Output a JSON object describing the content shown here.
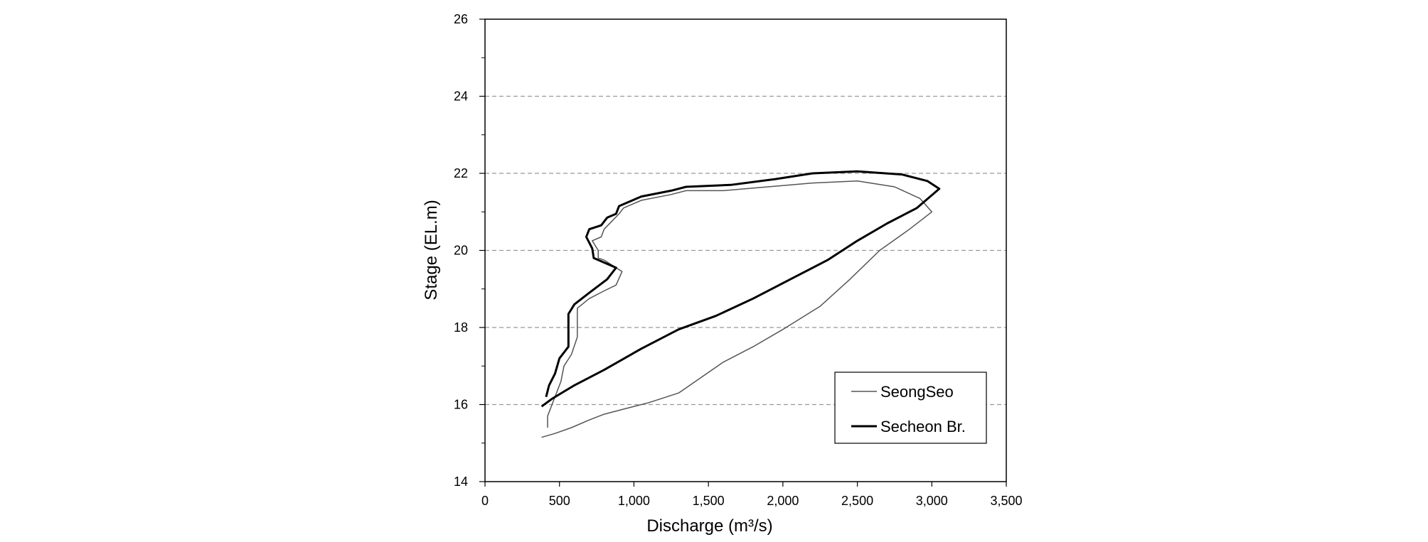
{
  "chart_data": {
    "type": "line",
    "title": "",
    "xlabel": "Discharge (m³/s)",
    "ylabel": "Stage (EL.m)",
    "xlim": [
      0,
      3500
    ],
    "ylim": [
      14,
      26
    ],
    "x_ticks": [
      0,
      500,
      1000,
      1500,
      2000,
      2500,
      3000,
      3500
    ],
    "x_tick_labels": [
      "0",
      "500",
      "1,000",
      "1,500",
      "2,000",
      "2,500",
      "3,000",
      "3,500"
    ],
    "y_ticks": [
      14,
      16,
      18,
      20,
      22,
      24,
      26
    ],
    "y_tick_labels": [
      "14",
      "16",
      "18",
      "20",
      "22",
      "24",
      "26"
    ],
    "grid": "horizontal dashed",
    "legend_position": "bottom-right",
    "series": [
      {
        "name": "SeongSeo",
        "color": "#555555",
        "points": [
          [
            380,
            15.15
          ],
          [
            470,
            15.25
          ],
          [
            580,
            15.4
          ],
          [
            700,
            15.6
          ],
          [
            800,
            15.75
          ],
          [
            950,
            15.9
          ],
          [
            1100,
            16.05
          ],
          [
            1300,
            16.3
          ],
          [
            1450,
            16.7
          ],
          [
            1600,
            17.1
          ],
          [
            1800,
            17.5
          ],
          [
            2000,
            17.95
          ],
          [
            2250,
            18.55
          ],
          [
            2450,
            19.25
          ],
          [
            2650,
            20.0
          ],
          [
            2850,
            20.55
          ],
          [
            3000,
            21.0
          ],
          [
            2920,
            21.35
          ],
          [
            2750,
            21.65
          ],
          [
            2500,
            21.8
          ],
          [
            2200,
            21.75
          ],
          [
            1900,
            21.65
          ],
          [
            1600,
            21.55
          ],
          [
            1350,
            21.55
          ],
          [
            1250,
            21.45
          ],
          [
            1050,
            21.3
          ],
          [
            930,
            21.1
          ],
          [
            900,
            20.95
          ],
          [
            850,
            20.75
          ],
          [
            800,
            20.55
          ],
          [
            780,
            20.35
          ],
          [
            720,
            20.25
          ],
          [
            760,
            20.0
          ],
          [
            760,
            19.8
          ],
          [
            800,
            19.75
          ],
          [
            920,
            19.45
          ],
          [
            880,
            19.1
          ],
          [
            800,
            18.95
          ],
          [
            700,
            18.75
          ],
          [
            620,
            18.5
          ],
          [
            620,
            18.1
          ],
          [
            620,
            17.75
          ],
          [
            580,
            17.3
          ],
          [
            530,
            17.0
          ],
          [
            510,
            16.6
          ],
          [
            480,
            16.3
          ],
          [
            450,
            16.0
          ],
          [
            420,
            15.7
          ],
          [
            420,
            15.4
          ]
        ]
      },
      {
        "name": "Secheon Br.",
        "color": "#000000",
        "points": [
          [
            380,
            15.95
          ],
          [
            450,
            16.15
          ],
          [
            600,
            16.5
          ],
          [
            800,
            16.9
          ],
          [
            1050,
            17.45
          ],
          [
            1300,
            17.95
          ],
          [
            1550,
            18.3
          ],
          [
            1800,
            18.75
          ],
          [
            2050,
            19.25
          ],
          [
            2300,
            19.75
          ],
          [
            2500,
            20.25
          ],
          [
            2700,
            20.7
          ],
          [
            2900,
            21.1
          ],
          [
            3050,
            21.6
          ],
          [
            2970,
            21.8
          ],
          [
            2800,
            21.97
          ],
          [
            2500,
            22.05
          ],
          [
            2200,
            22.0
          ],
          [
            1950,
            21.85
          ],
          [
            1650,
            21.7
          ],
          [
            1350,
            21.65
          ],
          [
            1250,
            21.55
          ],
          [
            1050,
            21.4
          ],
          [
            900,
            21.15
          ],
          [
            880,
            20.95
          ],
          [
            820,
            20.85
          ],
          [
            780,
            20.65
          ],
          [
            700,
            20.55
          ],
          [
            680,
            20.35
          ],
          [
            720,
            20.05
          ],
          [
            730,
            19.8
          ],
          [
            880,
            19.55
          ],
          [
            820,
            19.25
          ],
          [
            700,
            18.9
          ],
          [
            600,
            18.6
          ],
          [
            560,
            18.35
          ],
          [
            560,
            18.0
          ],
          [
            560,
            17.5
          ],
          [
            500,
            17.2
          ],
          [
            470,
            16.8
          ],
          [
            430,
            16.5
          ],
          [
            410,
            16.2
          ]
        ]
      }
    ]
  }
}
